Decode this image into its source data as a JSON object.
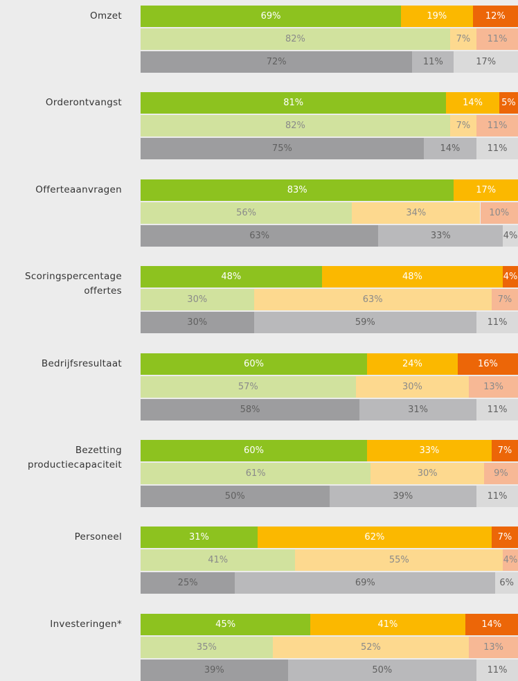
{
  "chart_data": {
    "type": "stacked-bar",
    "categories": [
      "Omzet",
      "Orderontvangst",
      "Offerteaanvragen",
      "Scoringspercentage offertes",
      "Bedrijfsresultaat",
      "Bezetting productiecapaciteit",
      "Personeel",
      "Investeringen*"
    ],
    "xlim": [
      0,
      100
    ],
    "bars": [
      {
        "colors": [
          "#8dc21f",
          "#fbb800",
          "#ec6608"
        ],
        "text_color": "#ffffff",
        "values": [
          [
            69,
            19,
            12
          ],
          [
            81,
            14,
            5
          ],
          [
            83,
            17,
            null
          ],
          [
            48,
            48,
            4
          ],
          [
            60,
            24,
            16
          ],
          [
            60,
            33,
            7
          ],
          [
            31,
            62,
            7
          ],
          [
            45,
            41,
            14
          ]
        ],
        "value_labels": [
          [
            "69%",
            "19%",
            "12%"
          ],
          [
            "81%",
            "14%",
            "5%"
          ],
          [
            "83%",
            "17%",
            null
          ],
          [
            "48%",
            "48%",
            "4%"
          ],
          [
            "60%",
            "24%",
            "16%"
          ],
          [
            "60%",
            "33%",
            "7%"
          ],
          [
            "31%",
            "62%",
            "7%"
          ],
          [
            "45%",
            "41%",
            "14%"
          ]
        ]
      },
      {
        "colors": [
          "#d1e29e",
          "#fdd98f",
          "#f7b895"
        ],
        "text_color": "#8a8a8a",
        "values": [
          [
            82,
            7,
            11
          ],
          [
            82,
            7,
            11
          ],
          [
            56,
            34,
            10
          ],
          [
            30,
            63,
            7
          ],
          [
            57,
            30,
            13
          ],
          [
            61,
            30,
            9
          ],
          [
            41,
            55,
            4
          ],
          [
            35,
            52,
            13
          ]
        ],
        "value_labels": [
          [
            "82%",
            "7%",
            "11%"
          ],
          [
            "82%",
            "7%",
            "11%"
          ],
          [
            "56%",
            "34%",
            "10%"
          ],
          [
            "30%",
            "63%",
            "7%"
          ],
          [
            "57%",
            "30%",
            "13%"
          ],
          [
            "61%",
            "30%",
            "9%"
          ],
          [
            "41%",
            "55%",
            "4%"
          ],
          [
            "35%",
            "52%",
            "13%"
          ]
        ]
      },
      {
        "colors": [
          "#9d9d9f",
          "#b9b9bb",
          "#dadada"
        ],
        "text_color": "#606060",
        "values": [
          [
            72,
            11,
            17
          ],
          [
            75,
            14,
            11
          ],
          [
            63,
            33,
            4
          ],
          [
            30,
            59,
            11
          ],
          [
            58,
            31,
            11
          ],
          [
            50,
            39,
            11
          ],
          [
            25,
            69,
            6
          ],
          [
            39,
            50,
            11
          ]
        ],
        "value_labels": [
          [
            "72%",
            "11%",
            "17%"
          ],
          [
            "75%",
            "14%",
            "11%"
          ],
          [
            "63%",
            "33%",
            "4%"
          ],
          [
            "30%",
            "59%",
            "11%"
          ],
          [
            "58%",
            "31%",
            "11%"
          ],
          [
            "50%",
            "39%",
            "11%"
          ],
          [
            "25%",
            "69%",
            "6%"
          ],
          [
            "39%",
            "50%",
            "11%"
          ]
        ]
      }
    ]
  }
}
